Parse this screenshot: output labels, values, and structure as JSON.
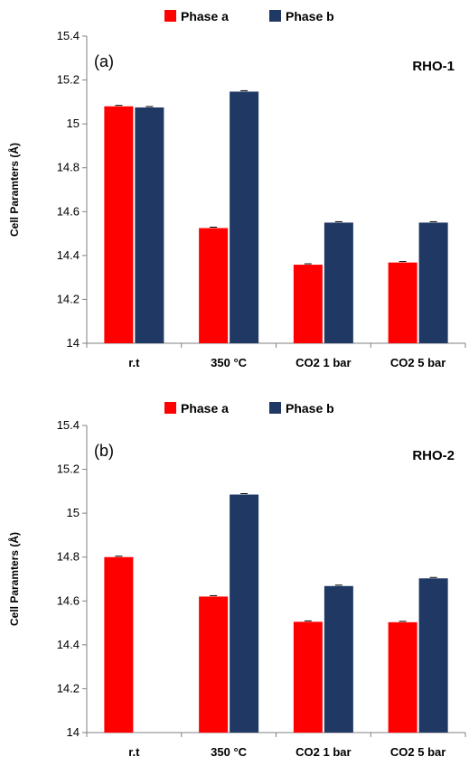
{
  "colors": {
    "phase_a": "#ff0000",
    "phase_b": "#1f3864",
    "axis": "#808080",
    "text": "#000000"
  },
  "chart_data": [
    {
      "type": "bar",
      "panel_label": "(a)",
      "sample_label": "RHO-1",
      "ylabel": "Cell Paramters (Å)",
      "xlabel": "",
      "categories": [
        "r.t",
        "350 °C",
        "CO2 1 bar",
        "CO2 5 bar"
      ],
      "ylim": [
        14,
        15.4
      ],
      "yticks": [
        "14",
        "14.2",
        "14.4",
        "14.6",
        "14.8",
        "15",
        "15.2",
        "15.4"
      ],
      "legend_position": "top",
      "series": [
        {
          "name": "Phase a",
          "color": "#ff0000",
          "values": [
            15.08,
            14.525,
            14.358,
            14.368
          ]
        },
        {
          "name": "Phase b",
          "color": "#1f3864",
          "values": [
            15.075,
            15.147,
            14.55,
            14.55
          ]
        }
      ]
    },
    {
      "type": "bar",
      "panel_label": "(b)",
      "sample_label": "RHO-2",
      "ylabel": "Cell Paramters (Å)",
      "xlabel": "",
      "categories": [
        "r.t",
        "350 °C",
        "CO2 1 bar",
        "CO2 5 bar"
      ],
      "ylim": [
        14,
        15.4
      ],
      "yticks": [
        "14",
        "14.2",
        "14.4",
        "14.6",
        "14.8",
        "15",
        "15.2",
        "15.4"
      ],
      "legend_position": "top",
      "series": [
        {
          "name": "Phase a",
          "color": "#ff0000",
          "values": [
            14.8,
            14.62,
            14.505,
            14.503
          ]
        },
        {
          "name": "Phase b",
          "color": "#1f3864",
          "values": [
            null,
            15.085,
            14.668,
            14.703
          ]
        }
      ]
    }
  ]
}
